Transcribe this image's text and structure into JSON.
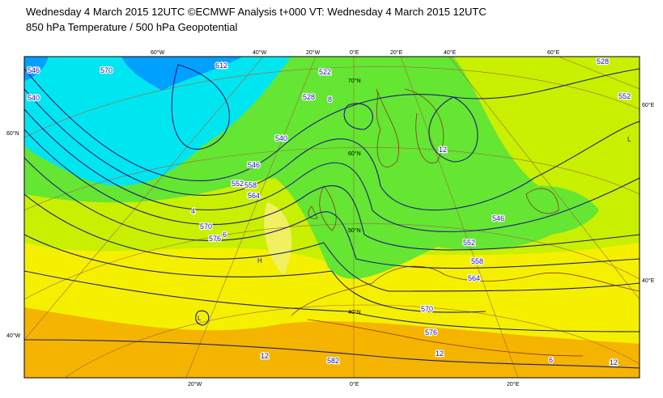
{
  "header": {
    "title": "Wednesday 4 March 2015 12UTC ©ECMWF Analysis t+000 VT: Wednesday 4 March 2015 12UTC",
    "subtitle": "850 hPa Temperature / 500 hPa Geopotential"
  },
  "map": {
    "lon_labels": [
      "60°W",
      "40°W",
      "20°W",
      "0°E",
      "20°E",
      "40°E",
      "60°E",
      "20°W",
      "0°E",
      "20°E"
    ],
    "lat_labels": [
      "70°N",
      "60°N",
      "50°N",
      "40°N",
      "60°N",
      "40°W",
      "60°E",
      "40°E"
    ],
    "contour_labels": [
      "570",
      "528",
      "552",
      "612",
      "522",
      "528",
      "540",
      "546",
      "552",
      "558",
      "564",
      "570",
      "576",
      "552",
      "558",
      "564",
      "570",
      "576",
      "582",
      "546",
      "540",
      "546",
      "12",
      "8",
      "6",
      "4",
      "12",
      "12",
      "6",
      "12"
    ],
    "pressure_labels": [
      "H",
      "L",
      "L"
    ]
  }
}
